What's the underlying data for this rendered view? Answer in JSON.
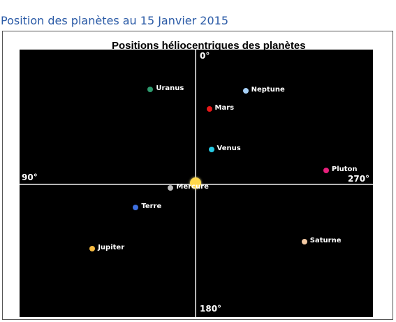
{
  "page": {
    "heading": "Position des planètes au 15 Janvier 2015"
  },
  "chart_data": {
    "type": "scatter",
    "title": "Positions héliocentriques des planètes",
    "axis_labels": {
      "top": "0°",
      "left": "90°",
      "right": "270°",
      "bottom": "180°"
    },
    "grid": false,
    "background": "#000000",
    "sun": {
      "name": "Soleil",
      "x": 0,
      "y": 0,
      "color": "#ffd84a"
    },
    "xlim": [
      -250,
      255
    ],
    "ylim": [
      -190,
      192
    ],
    "points": [
      {
        "name": "Uranus",
        "x": -63,
        "y": 135,
        "color": "#2e9a6e"
      },
      {
        "name": "Neptune",
        "x": 73,
        "y": 133,
        "color": "#a7d0f7"
      },
      {
        "name": "Mars",
        "x": 21,
        "y": 107,
        "color": "#e81818"
      },
      {
        "name": "Venus",
        "x": 24,
        "y": 49,
        "color": "#27c9e3"
      },
      {
        "name": "Pluton",
        "x": 188,
        "y": 19,
        "color": "#e8207c"
      },
      {
        "name": "Mercure",
        "x": -34,
        "y": -5,
        "color": "#bdbdbd"
      },
      {
        "name": "Terre",
        "x": -84,
        "y": -33,
        "color": "#3d6fe0"
      },
      {
        "name": "Jupiter",
        "x": -146,
        "y": -92,
        "color": "#f5b940"
      },
      {
        "name": "Saturne",
        "x": 157,
        "y": -82,
        "color": "#f3c9a3"
      }
    ]
  }
}
